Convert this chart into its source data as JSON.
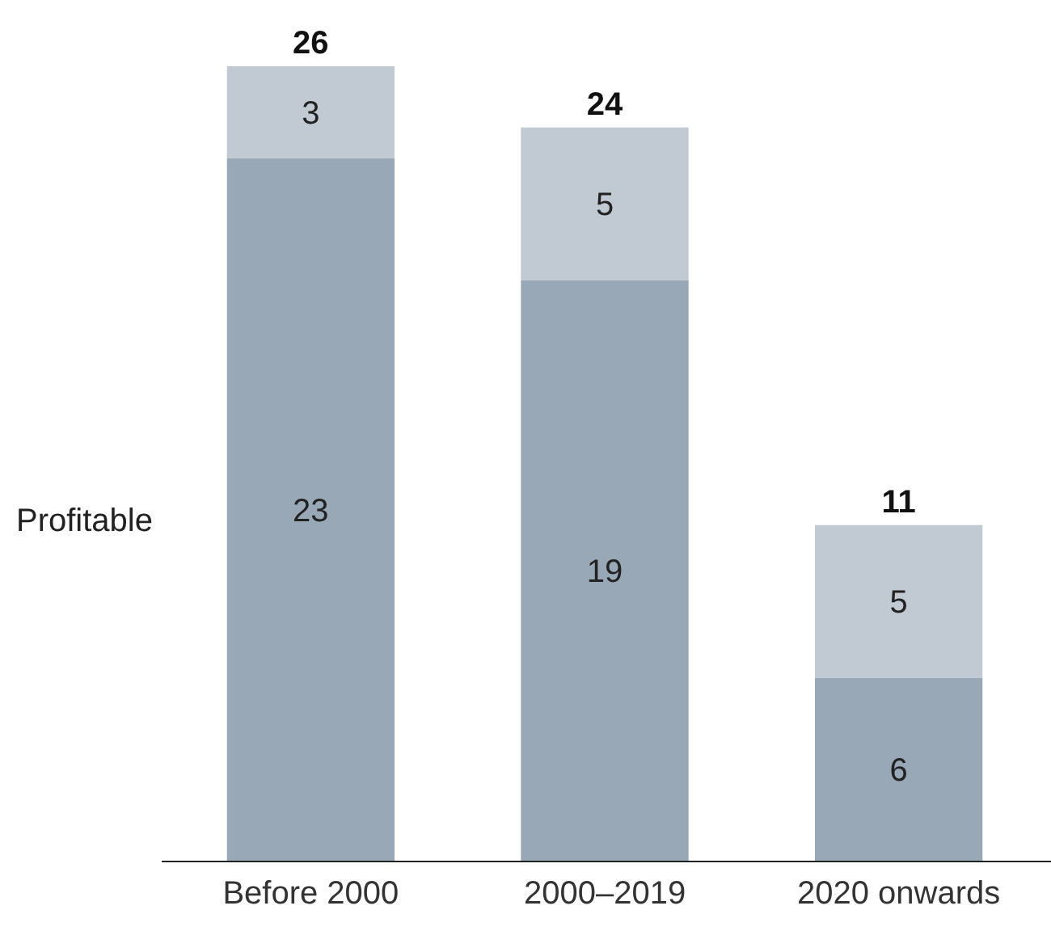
{
  "chart_data": {
    "type": "bar",
    "stacked": true,
    "data_labels": true,
    "categories": [
      "Before 2000",
      "2000–2019",
      "2020 onwards"
    ],
    "series": [
      {
        "name": "Profitable",
        "color": "#98a8b7",
        "values": [
          23,
          19,
          6
        ]
      },
      {
        "color": "#c1c9d3",
        "values": [
          3,
          5,
          5
        ]
      }
    ],
    "totals": [
      "26",
      "24",
      "11"
    ]
  }
}
